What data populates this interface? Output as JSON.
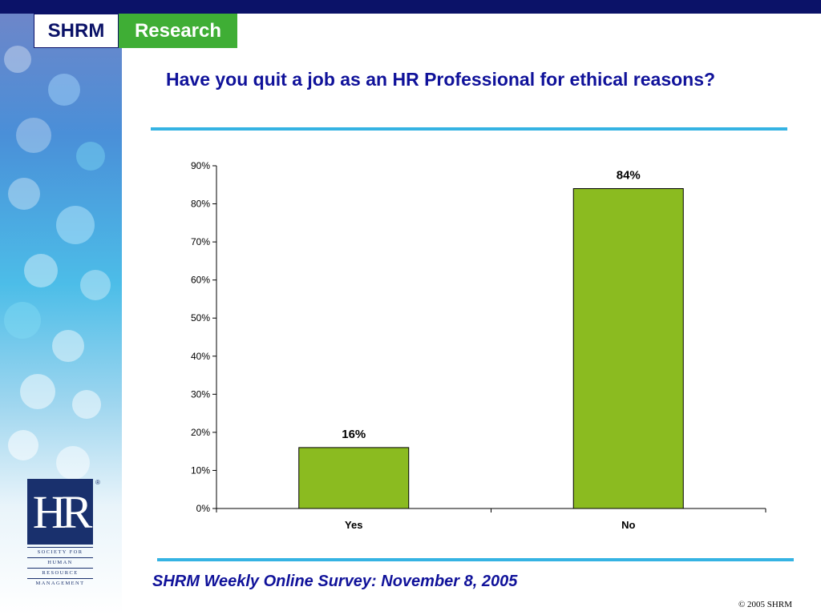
{
  "logo": {
    "left": "SHRM",
    "right": "Research"
  },
  "title": "Have you quit a job as an HR Professional for ethical reasons?",
  "footer": {
    "survey": "SHRM Weekly Online Survey: November 8, 2005",
    "copyright": "© 2005 SHRM"
  },
  "hr_logo": {
    "letters": "HR",
    "lines": [
      "SOCIETY FOR",
      "HUMAN",
      "RESOURCE",
      "MANAGEMENT"
    ]
  },
  "colors": {
    "bar": "#8bbb20",
    "title": "#10129a",
    "rule": "#35b3e3",
    "top_bar": "#0b1268"
  },
  "chart_data": {
    "type": "bar",
    "categories": [
      "Yes",
      "No"
    ],
    "values": [
      16,
      84
    ],
    "data_labels": [
      "16%",
      "84%"
    ],
    "yticks": [
      "0%",
      "10%",
      "20%",
      "30%",
      "40%",
      "50%",
      "60%",
      "70%",
      "80%",
      "90%"
    ],
    "ylim": [
      0,
      90
    ],
    "grid": false,
    "legend": "none"
  }
}
